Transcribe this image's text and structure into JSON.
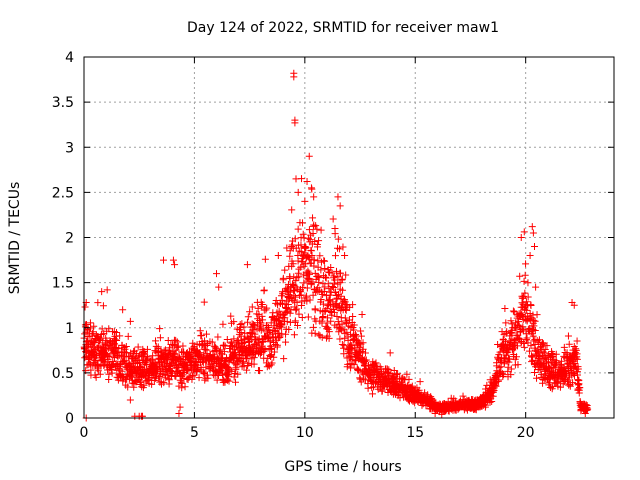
{
  "chart_data": {
    "type": "scatter",
    "title": "Day 124 of 2022, SRMTID for receiver maw1",
    "xlabel": "GPS time / hours",
    "ylabel": "SRMTID / TECUs",
    "xlim": [
      0,
      24
    ],
    "ylim": [
      0,
      4
    ],
    "xticks": [
      0,
      5,
      10,
      15,
      20
    ],
    "yticks": [
      0,
      0.5,
      1,
      1.5,
      2,
      2.5,
      3,
      3.5,
      4
    ],
    "xtick_labels": [
      "0",
      "5",
      "10",
      "15",
      "20"
    ],
    "ytick_labels": [
      "0",
      "0.5",
      "1",
      "1.5",
      "2",
      "2.5",
      "3",
      "3.5",
      "4"
    ],
    "grid": true,
    "marker": "plus",
    "series": [
      {
        "name": "maw1",
        "color": "#ff0000",
        "trend": [
          [
            0.0,
            0.75
          ],
          [
            0.5,
            0.75
          ],
          [
            1.0,
            0.7
          ],
          [
            1.5,
            0.68
          ],
          [
            2.0,
            0.55
          ],
          [
            2.5,
            0.55
          ],
          [
            3.0,
            0.55
          ],
          [
            3.5,
            0.6
          ],
          [
            4.0,
            0.65
          ],
          [
            4.5,
            0.55
          ],
          [
            5.0,
            0.65
          ],
          [
            5.5,
            0.7
          ],
          [
            6.0,
            0.6
          ],
          [
            6.5,
            0.6
          ],
          [
            7.0,
            0.75
          ],
          [
            7.5,
            0.9
          ],
          [
            8.0,
            0.9
          ],
          [
            8.5,
            0.85
          ],
          [
            9.0,
            1.1
          ],
          [
            9.5,
            1.5
          ],
          [
            10.0,
            1.7
          ],
          [
            10.5,
            1.6
          ],
          [
            11.0,
            1.3
          ],
          [
            11.5,
            1.4
          ],
          [
            12.0,
            0.8
          ],
          [
            12.5,
            0.7
          ],
          [
            13.0,
            0.45
          ],
          [
            13.5,
            0.45
          ],
          [
            14.0,
            0.38
          ],
          [
            14.5,
            0.32
          ],
          [
            15.0,
            0.25
          ],
          [
            15.5,
            0.2
          ],
          [
            16.0,
            0.12
          ],
          [
            16.5,
            0.12
          ],
          [
            17.0,
            0.14
          ],
          [
            17.5,
            0.14
          ],
          [
            18.0,
            0.17
          ],
          [
            18.5,
            0.3
          ],
          [
            19.0,
            0.75
          ],
          [
            19.5,
            0.85
          ],
          [
            20.0,
            1.2
          ],
          [
            20.5,
            0.7
          ],
          [
            21.0,
            0.55
          ],
          [
            21.5,
            0.5
          ],
          [
            22.0,
            0.55
          ],
          [
            22.3,
            0.7
          ],
          [
            22.5,
            0.12
          ],
          [
            22.8,
            0.1
          ]
        ],
        "outliers": [
          [
            9.5,
            3.82
          ],
          [
            9.5,
            3.78
          ],
          [
            9.55,
            3.3
          ],
          [
            9.55,
            3.27
          ],
          [
            10.2,
            2.9
          ],
          [
            9.6,
            2.65
          ],
          [
            9.7,
            2.5
          ],
          [
            10.1,
            2.62
          ],
          [
            10.3,
            2.55
          ],
          [
            10.4,
            2.45
          ],
          [
            11.5,
            2.45
          ],
          [
            11.6,
            2.35
          ],
          [
            10.0,
            2.4
          ],
          [
            20.3,
            2.12
          ],
          [
            20.35,
            2.05
          ],
          [
            19.8,
            2.0
          ],
          [
            20.4,
            1.9
          ],
          [
            8.8,
            1.8
          ],
          [
            9.4,
            1.9
          ],
          [
            3.6,
            1.75
          ],
          [
            4.05,
            1.75
          ],
          [
            4.1,
            1.7
          ],
          [
            7.4,
            1.7
          ],
          [
            11.8,
            1.8
          ],
          [
            20.2,
            1.8
          ],
          [
            0.8,
            1.4
          ],
          [
            1.05,
            1.42
          ],
          [
            6.0,
            1.6
          ],
          [
            6.1,
            1.45
          ],
          [
            20.45,
            1.45
          ],
          [
            22.1,
            1.28
          ],
          [
            22.2,
            1.25
          ],
          [
            0.1,
            1.28
          ],
          [
            2.1,
            1.07
          ],
          [
            1.75,
            1.2
          ],
          [
            2.3,
            0.02
          ],
          [
            2.5,
            0.02
          ],
          [
            2.6,
            0.02
          ],
          [
            2.65,
            0.02
          ],
          [
            0.1,
            0.0
          ],
          [
            4.3,
            0.05
          ],
          [
            4.35,
            0.12
          ],
          [
            2.1,
            0.2
          ],
          [
            15.9,
            0.05
          ],
          [
            16.2,
            0.04
          ],
          [
            22.7,
            0.05
          ],
          [
            22.5,
            0.08
          ]
        ]
      }
    ]
  }
}
